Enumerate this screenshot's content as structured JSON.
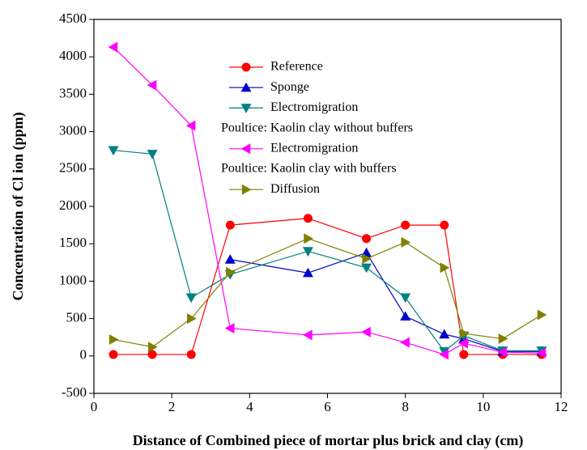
{
  "chart_data": {
    "type": "line",
    "x_label": "Distance of Combined piece of mortar plus brick and clay (cm)",
    "y_label": "Concentration of Cl ion (ppm)",
    "x": [
      0.5,
      1.5,
      2.5,
      3.5,
      5.5,
      7,
      8,
      9,
      9.5,
      10.5,
      11.5
    ],
    "series": [
      {
        "name": "Reference",
        "color": "#ff0000",
        "marker": "circle",
        "values": [
          20,
          20,
          20,
          1750,
          1840,
          1570,
          1750,
          1750,
          20,
          20,
          20
        ]
      },
      {
        "name": "Sponge",
        "color": "#0000cc",
        "marker": "triangle-up",
        "values": [
          null,
          null,
          null,
          1290,
          1110,
          1380,
          530,
          290,
          230,
          60,
          60
        ]
      },
      {
        "name": "Electromigration",
        "color": "#008080",
        "marker": "triangle-down",
        "values": [
          2750,
          2700,
          780,
          1090,
          1400,
          1180,
          780,
          60,
          270,
          70,
          70
        ]
      },
      {
        "name": "Electromigration",
        "color": "#ff00ff",
        "marker": "triangle-left",
        "values": [
          4130,
          3620,
          3080,
          370,
          280,
          320,
          180,
          20,
          170,
          50,
          40
        ]
      },
      {
        "name": "Diffusion",
        "color": "#808000",
        "marker": "triangle-right",
        "values": [
          220,
          120,
          500,
          1120,
          1570,
          1300,
          1520,
          1180,
          300,
          230,
          550
        ]
      }
    ],
    "legend_notes": [
      "Poultice: Kaolin clay without buffers",
      "Poultice: Kaolin clay with buffers"
    ],
    "xlim": [
      0,
      12
    ],
    "xticks": [
      0,
      2,
      4,
      6,
      8,
      10,
      12
    ],
    "ylim": [
      -500,
      4500
    ],
    "yticks": [
      -500,
      0,
      500,
      1000,
      1500,
      2000,
      2500,
      3000,
      3500,
      4000,
      4500
    ],
    "grid": false
  }
}
